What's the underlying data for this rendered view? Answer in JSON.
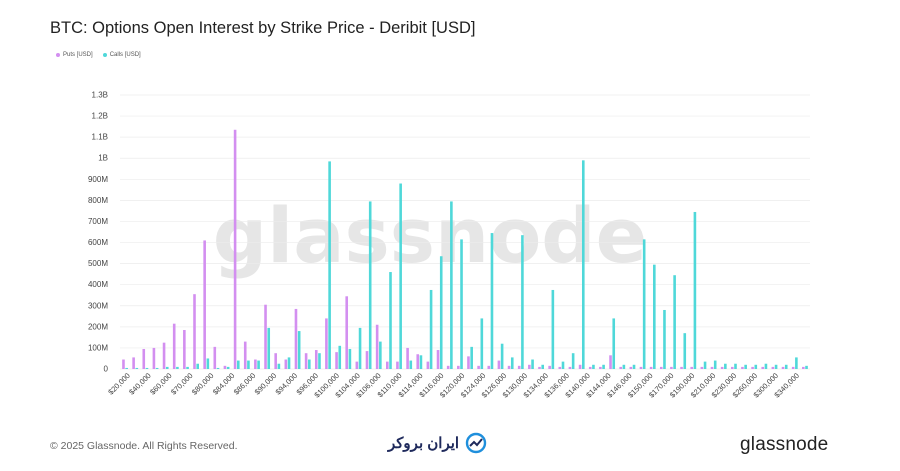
{
  "chart_data": {
    "type": "bar",
    "title": "BTC: Options Open Interest by Strike Price - Deribit [USD]",
    "xlabel": "",
    "ylabel": "",
    "ylim": [
      0,
      1300000000
    ],
    "y_ticks": [
      {
        "value": 0,
        "label": "0"
      },
      {
        "value": 100000000,
        "label": "100M"
      },
      {
        "value": 200000000,
        "label": "200M"
      },
      {
        "value": 300000000,
        "label": "300M"
      },
      {
        "value": 400000000,
        "label": "400M"
      },
      {
        "value": 500000000,
        "label": "500M"
      },
      {
        "value": 600000000,
        "label": "600M"
      },
      {
        "value": 700000000,
        "label": "700M"
      },
      {
        "value": 800000000,
        "label": "800M"
      },
      {
        "value": 900000000,
        "label": "900M"
      },
      {
        "value": 1000000000,
        "label": "1B"
      },
      {
        "value": 1100000000,
        "label": "1.1B"
      },
      {
        "value": 1200000000,
        "label": "1.2B"
      },
      {
        "value": 1300000000,
        "label": "1.3B"
      }
    ],
    "x_tick_labels": [
      "$20,000",
      "$40,000",
      "$60,000",
      "$70,000",
      "$80,000",
      "$84,000",
      "$86,000",
      "$90,000",
      "$94,000",
      "$96,000",
      "$100,000",
      "$104,000",
      "$106,000",
      "$110,000",
      "$114,000",
      "$116,000",
      "$120,000",
      "$124,000",
      "$126,000",
      "$130,000",
      "$134,000",
      "$136,000",
      "$140,000",
      "$144,000",
      "$146,000",
      "$150,000",
      "$170,000",
      "$190,000",
      "$210,000",
      "$230,000",
      "$260,000",
      "$300,000",
      "$340,000"
    ],
    "grid": true,
    "legend_position": "top-left",
    "series": [
      {
        "name": "Puts [USD]",
        "color": "#d38ff0",
        "values": [
          45,
          55,
          95,
          100,
          125,
          215,
          185,
          355,
          610,
          105,
          15,
          1135,
          130,
          45,
          305,
          75,
          45,
          285,
          75,
          90,
          240,
          80,
          345,
          35,
          85,
          210,
          35,
          35,
          100,
          70,
          35,
          90,
          15,
          15,
          60,
          15,
          15,
          40,
          15,
          15,
          20,
          10,
          15,
          10,
          10,
          20,
          10,
          10,
          65,
          10,
          10,
          10,
          10,
          10,
          10,
          10,
          10,
          10,
          10,
          10,
          10,
          10,
          10,
          10,
          10,
          10,
          10,
          10
        ]
      },
      {
        "name": "Calls [USD]",
        "color": "#4fd8d9",
        "values": [
          5,
          5,
          5,
          5,
          10,
          10,
          10,
          25,
          50,
          5,
          10,
          40,
          40,
          40,
          195,
          25,
          55,
          180,
          45,
          75,
          985,
          110,
          95,
          195,
          795,
          130,
          460,
          880,
          40,
          65,
          375,
          535,
          795,
          615,
          105,
          240,
          645,
          120,
          55,
          635,
          45,
          20,
          375,
          35,
          75,
          990,
          20,
          20,
          240,
          20,
          20,
          615,
          495,
          280,
          445,
          170,
          745,
          35,
          40,
          25,
          25,
          20,
          20,
          25,
          20,
          20,
          55,
          15
        ]
      }
    ]
  },
  "branding": {
    "copyright": "© 2025 Glassnode. All Rights Reserved.",
    "watermark": "glassnode",
    "logo_text": "glassnode",
    "partner_text": "ایران بروکر"
  }
}
